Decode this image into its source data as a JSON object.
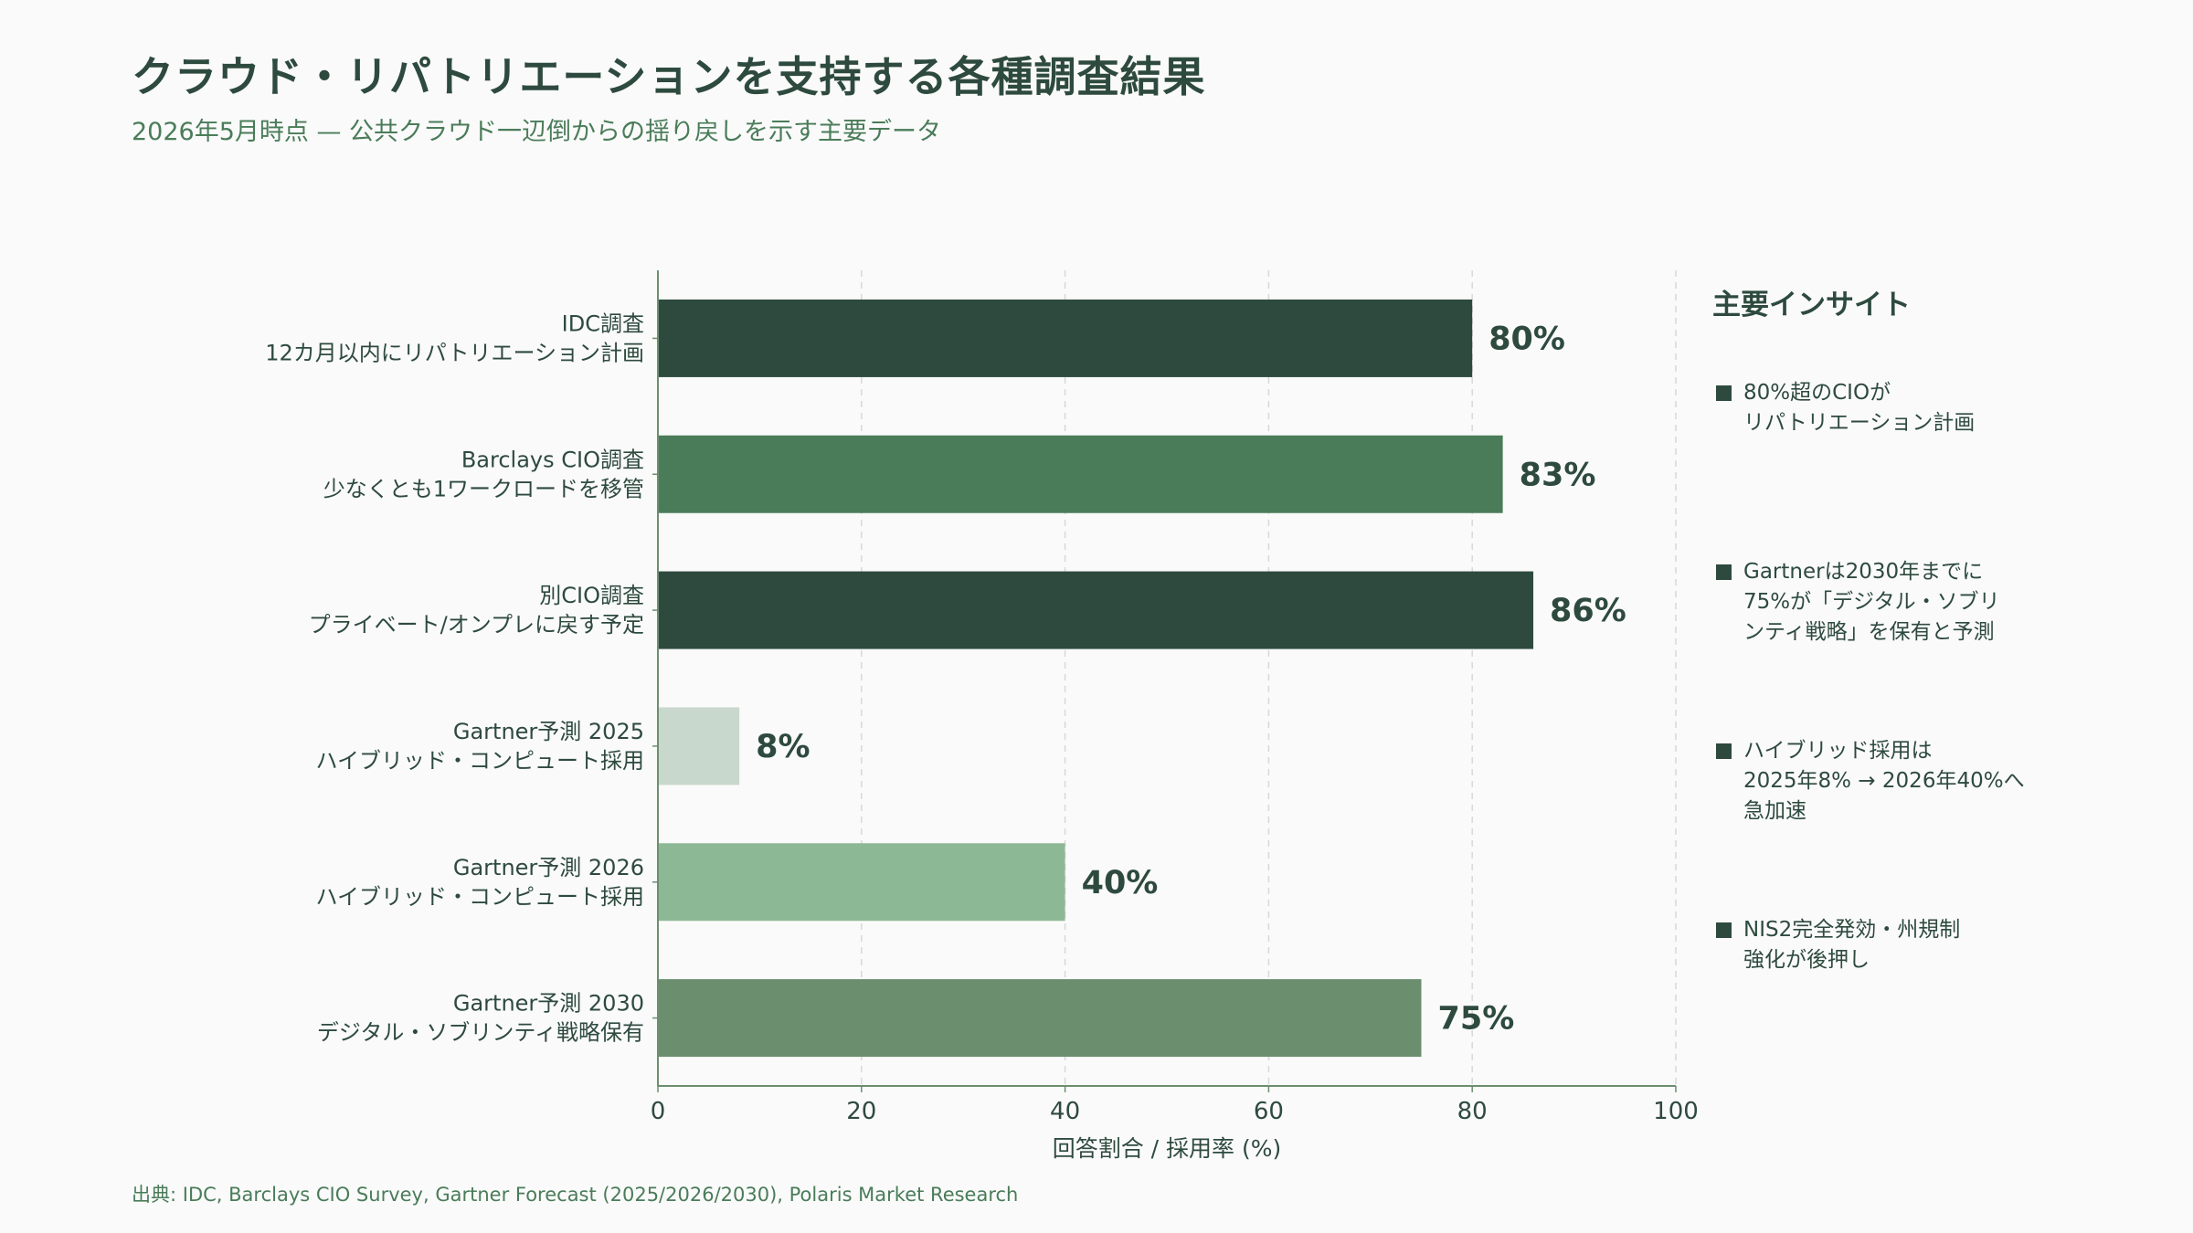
{
  "title": "クラウド・リパトリエーションを支持する各種調査結果",
  "subtitle": "2026年5月時点 — 公共クラウド一辺倒からの揺り戻しを示す主要データ",
  "chart_data": {
    "type": "bar",
    "orientation": "horizontal",
    "categories": [
      [
        "IDC調査",
        "12カ月以内にリパトリエーション計画"
      ],
      [
        "Barclays CIO調査",
        "少なくとも1ワークロードを移管"
      ],
      [
        "別CIO調査",
        "プライベート/オンプレに戻す予定"
      ],
      [
        "Gartner予測 2025",
        "ハイブリッド・コンピュート採用"
      ],
      [
        "Gartner予測 2026",
        "ハイブリッド・コンピュート採用"
      ],
      [
        "Gartner予測 2030",
        "デジタル・ソブリンティ戦略保有"
      ]
    ],
    "values": [
      80,
      83,
      86,
      8,
      40,
      75
    ],
    "value_labels": [
      "80%",
      "83%",
      "86%",
      "8%",
      "40%",
      "75%"
    ],
    "colors": [
      "#2e4a3f",
      "#4a7c59",
      "#2e4a3f",
      "#c8d8cc",
      "#8db896",
      "#6b8f6e"
    ],
    "xlabel": "回答割合 / 採用率 (%)",
    "xlim": [
      0,
      100
    ],
    "xticks": [
      0,
      20,
      40,
      60,
      80,
      100
    ],
    "grid": "vertical-dashed",
    "legend": "none"
  },
  "insights": {
    "title": "主要インサイト",
    "items": [
      "80%超のCIOが\nリパトリエーション計画",
      "Gartnerは2030年までに\n75%が「デジタル・ソブリ\nンティ戦略」を保有と予測",
      "ハイブリッド採用は\n2025年8% → 2026年40%へ\n急加速",
      "NIS2完全発効・州規制\n強化が後押し"
    ]
  },
  "source": "出典: IDC, Barclays CIO Survey, Gartner Forecast (2025/2026/2030), Polaris Market Research",
  "colors": {
    "dark": "#2e4a3f",
    "accent": "#4a7c59",
    "background": "#fafafa",
    "grid": "#d8d8d8"
  }
}
